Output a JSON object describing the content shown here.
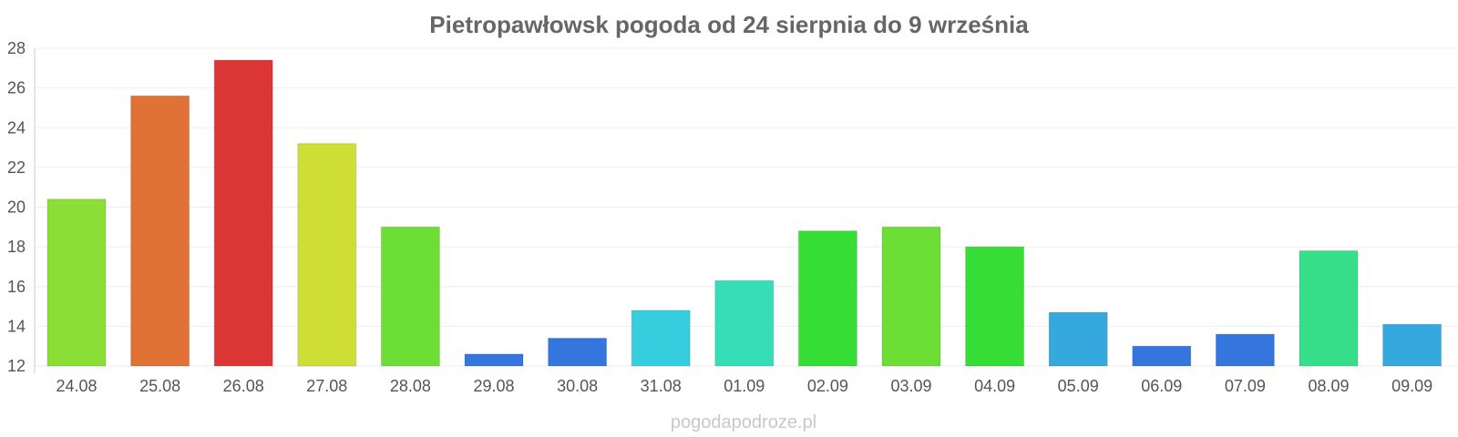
{
  "chart_data": {
    "type": "bar",
    "title": "Pietropawłowsk pogoda od 24 sierpnia do 9 września",
    "xlabel": "",
    "ylabel": "",
    "ylim": [
      12,
      28
    ],
    "yticks": [
      "12",
      "14",
      "16",
      "18",
      "20",
      "22",
      "24",
      "26",
      "28"
    ],
    "grid": true,
    "categories": [
      "24.08",
      "25.08",
      "26.08",
      "27.08",
      "28.08",
      "29.08",
      "30.08",
      "31.08",
      "01.09",
      "02.09",
      "03.09",
      "04.09",
      "05.09",
      "06.09",
      "07.09",
      "08.09",
      "09.09"
    ],
    "values": [
      20.4,
      25.6,
      27.4,
      23.2,
      19.0,
      12.6,
      13.4,
      14.8,
      16.3,
      18.8,
      19.0,
      18.0,
      14.7,
      13.0,
      13.6,
      17.8,
      14.1
    ],
    "colors": [
      "#8ade36",
      "#e07236",
      "#dc3535",
      "#cede35",
      "#6cde35",
      "#3476dd",
      "#3476dd",
      "#36cede",
      "#36deb8",
      "#35dd35",
      "#6cde35",
      "#35dd35",
      "#35a8dd",
      "#3476dd",
      "#3476dd",
      "#36de8a",
      "#35a8dd"
    ]
  },
  "watermark": "pogodapodroze.pl"
}
